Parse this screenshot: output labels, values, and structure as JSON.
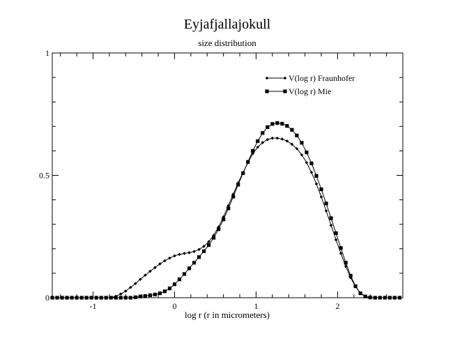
{
  "chart_data": {
    "type": "line",
    "title": "Eyjafjallajokull",
    "subtitle": "size distribution",
    "xlabel": "log r (r in micrometers)",
    "ylabel": "",
    "xlim": [
      -1.5,
      2.8
    ],
    "ylim": [
      0,
      1
    ],
    "x_ticks": [
      {
        "value": -1,
        "label": "-1"
      },
      {
        "value": 0,
        "label": "0"
      },
      {
        "value": 1,
        "label": "1"
      },
      {
        "value": 2,
        "label": "2"
      }
    ],
    "y_ticks": [
      {
        "value": 0,
        "label": "0"
      },
      {
        "value": 0.5,
        "label": "0.5"
      },
      {
        "value": 1,
        "label": "1"
      }
    ],
    "grid": false,
    "legend_position": "top-right",
    "series": [
      {
        "name": "V(log r) Fraunhofer",
        "marker": "diamond",
        "points": [
          [
            -1.5,
            0
          ],
          [
            -1.44,
            0
          ],
          [
            -1.38,
            0
          ],
          [
            -1.32,
            0
          ],
          [
            -1.26,
            0
          ],
          [
            -1.2,
            0
          ],
          [
            -1.14,
            0
          ],
          [
            -1.08,
            0
          ],
          [
            -1.02,
            0
          ],
          [
            -0.96,
            0
          ],
          [
            -0.9,
            0
          ],
          [
            -0.84,
            0
          ],
          [
            -0.78,
            0
          ],
          [
            -0.72,
            0.006
          ],
          [
            -0.66,
            0.015
          ],
          [
            -0.6,
            0.027
          ],
          [
            -0.54,
            0.042
          ],
          [
            -0.48,
            0.058
          ],
          [
            -0.42,
            0.075
          ],
          [
            -0.36,
            0.092
          ],
          [
            -0.3,
            0.108
          ],
          [
            -0.24,
            0.123
          ],
          [
            -0.18,
            0.138
          ],
          [
            -0.12,
            0.151
          ],
          [
            -0.06,
            0.162
          ],
          [
            0.0,
            0.171
          ],
          [
            0.06,
            0.177
          ],
          [
            0.12,
            0.181
          ],
          [
            0.18,
            0.184
          ],
          [
            0.24,
            0.189
          ],
          [
            0.3,
            0.197
          ],
          [
            0.36,
            0.21
          ],
          [
            0.42,
            0.229
          ],
          [
            0.48,
            0.255
          ],
          [
            0.54,
            0.289
          ],
          [
            0.6,
            0.33
          ],
          [
            0.66,
            0.376
          ],
          [
            0.72,
            0.423
          ],
          [
            0.78,
            0.469
          ],
          [
            0.84,
            0.512
          ],
          [
            0.9,
            0.552
          ],
          [
            0.96,
            0.589
          ],
          [
            1.02,
            0.615
          ],
          [
            1.08,
            0.634
          ],
          [
            1.14,
            0.646
          ],
          [
            1.2,
            0.652
          ],
          [
            1.26,
            0.652
          ],
          [
            1.32,
            0.648
          ],
          [
            1.38,
            0.64
          ],
          [
            1.44,
            0.627
          ],
          [
            1.5,
            0.609
          ],
          [
            1.56,
            0.584
          ],
          [
            1.62,
            0.552
          ],
          [
            1.68,
            0.512
          ],
          [
            1.74,
            0.465
          ],
          [
            1.8,
            0.412
          ],
          [
            1.86,
            0.355
          ],
          [
            1.92,
            0.296
          ],
          [
            1.98,
            0.237
          ],
          [
            2.04,
            0.181
          ],
          [
            2.1,
            0.128
          ],
          [
            2.16,
            0.082
          ],
          [
            2.22,
            0.045
          ],
          [
            2.28,
            0.019
          ],
          [
            2.34,
            0.005
          ],
          [
            2.4,
            0
          ],
          [
            2.46,
            0
          ],
          [
            2.52,
            0
          ],
          [
            2.58,
            0
          ],
          [
            2.64,
            0
          ],
          [
            2.7,
            0
          ],
          [
            2.76,
            0
          ]
        ]
      },
      {
        "name": "V(log r) Mie",
        "marker": "square",
        "points": [
          [
            -1.5,
            0
          ],
          [
            -1.44,
            0
          ],
          [
            -1.38,
            0
          ],
          [
            -1.32,
            0
          ],
          [
            -1.26,
            0
          ],
          [
            -1.2,
            0
          ],
          [
            -1.14,
            0
          ],
          [
            -1.08,
            0
          ],
          [
            -1.02,
            0
          ],
          [
            -0.96,
            0
          ],
          [
            -0.9,
            0
          ],
          [
            -0.84,
            0
          ],
          [
            -0.78,
            0
          ],
          [
            -0.72,
            0
          ],
          [
            -0.66,
            0
          ],
          [
            -0.6,
            0
          ],
          [
            -0.54,
            0
          ],
          [
            -0.48,
            0.002
          ],
          [
            -0.42,
            0.005
          ],
          [
            -0.36,
            0.007
          ],
          [
            -0.3,
            0.01
          ],
          [
            -0.24,
            0.013
          ],
          [
            -0.18,
            0.018
          ],
          [
            -0.12,
            0.026
          ],
          [
            -0.06,
            0.038
          ],
          [
            0.0,
            0.055
          ],
          [
            0.06,
            0.075
          ],
          [
            0.12,
            0.097
          ],
          [
            0.18,
            0.12
          ],
          [
            0.24,
            0.143
          ],
          [
            0.3,
            0.166
          ],
          [
            0.36,
            0.19
          ],
          [
            0.42,
            0.215
          ],
          [
            0.48,
            0.245
          ],
          [
            0.54,
            0.28
          ],
          [
            0.6,
            0.32
          ],
          [
            0.66,
            0.365
          ],
          [
            0.72,
            0.413
          ],
          [
            0.78,
            0.462
          ],
          [
            0.84,
            0.509
          ],
          [
            0.9,
            0.555
          ],
          [
            0.96,
            0.6
          ],
          [
            1.02,
            0.64
          ],
          [
            1.08,
            0.673
          ],
          [
            1.14,
            0.697
          ],
          [
            1.2,
            0.71
          ],
          [
            1.26,
            0.714
          ],
          [
            1.32,
            0.711
          ],
          [
            1.38,
            0.702
          ],
          [
            1.44,
            0.686
          ],
          [
            1.5,
            0.663
          ],
          [
            1.56,
            0.633
          ],
          [
            1.62,
            0.594
          ],
          [
            1.68,
            0.549
          ],
          [
            1.74,
            0.498
          ],
          [
            1.8,
            0.443
          ],
          [
            1.86,
            0.385
          ],
          [
            1.92,
            0.325
          ],
          [
            1.98,
            0.264
          ],
          [
            2.04,
            0.203
          ],
          [
            2.1,
            0.143
          ],
          [
            2.16,
            0.09
          ],
          [
            2.22,
            0.047
          ],
          [
            2.28,
            0.018
          ],
          [
            2.34,
            0.005
          ],
          [
            2.4,
            0.001
          ],
          [
            2.46,
            0
          ],
          [
            2.52,
            0
          ],
          [
            2.58,
            0
          ],
          [
            2.64,
            0
          ],
          [
            2.7,
            0
          ],
          [
            2.76,
            0
          ]
        ]
      }
    ]
  }
}
